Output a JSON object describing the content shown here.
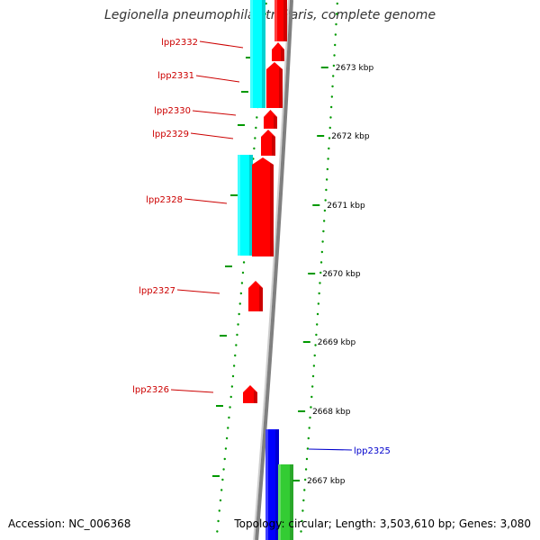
{
  "title": "Legionella pneumophila str. Paris, complete genome",
  "footer": {
    "accession": "Accession: NC_006368",
    "info": "Topology: circular; Length: 3,503,610 bp; Genes: 3,080"
  },
  "colors": {
    "forward_gene": "#ff0000",
    "reverse_gene": "#00ffff",
    "blue_feature": "#0000ff",
    "green_feature": "#33cc33",
    "backbone": "#808080",
    "gc_skew_dots": "#009900",
    "label_red": "#cc0000",
    "label_blue": "#0000cc"
  },
  "scale_ticks": [
    "2673 kbp",
    "2672 kbp",
    "2671 kbp",
    "2670 kbp",
    "2669 kbp",
    "2668 kbp",
    "2667 kbp"
  ],
  "gene_labels": [
    "lpp2332",
    "lpp2331",
    "lpp2330",
    "lpp2329",
    "lpp2328",
    "lpp2327",
    "lpp2326",
    "lpp2325"
  ]
}
